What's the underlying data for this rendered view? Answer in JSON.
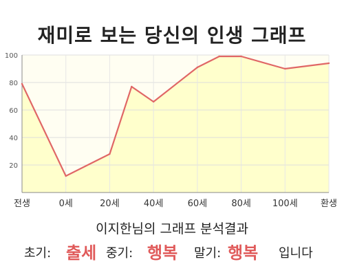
{
  "title": "재미로 보는 당신의 인생 그래프",
  "chart_data": {
    "type": "area",
    "x": [
      "전생",
      "0세",
      "20세",
      "40세",
      "60세",
      "80세",
      "100세",
      "환생"
    ],
    "points": [
      {
        "x": "전생",
        "y": 79
      },
      {
        "x": "0세",
        "y": 12
      },
      {
        "x": "20세",
        "y": 28
      },
      {
        "x": "30세",
        "y": 77
      },
      {
        "x": "40세",
        "y": 66
      },
      {
        "x": "60세",
        "y": 91
      },
      {
        "x": "70세",
        "y": 99
      },
      {
        "x": "80세",
        "y": 99
      },
      {
        "x": "100세",
        "y": 90
      },
      {
        "x": "환생",
        "y": 94
      }
    ],
    "yticks": [
      20,
      40,
      60,
      80,
      100
    ],
    "ylim": [
      0,
      100
    ],
    "grid": true,
    "line_color": "#e06666",
    "fill_color": "#ffffcc"
  },
  "summary": {
    "heading": "이지한님의 그래프 분석결과",
    "early_label": "초기:",
    "early_value": "출세",
    "middle_label": "중기:",
    "middle_value": "행복",
    "late_label": "말기:",
    "late_value": "행복",
    "ending": "입니다"
  }
}
